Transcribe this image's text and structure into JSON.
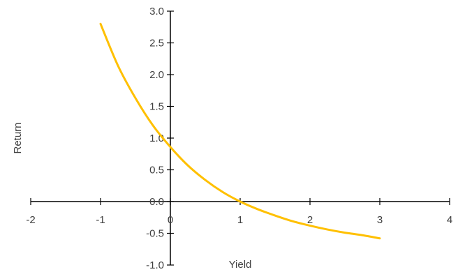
{
  "chart_data": {
    "type": "line",
    "title": "",
    "xlabel": "Yield",
    "ylabel": "Return",
    "xlim": [
      -2,
      4
    ],
    "ylim": [
      -1.0,
      3.0
    ],
    "x_ticks": [
      -2,
      -1,
      0,
      1,
      2,
      3,
      4
    ],
    "y_ticks": [
      3.0,
      2.5,
      2.0,
      1.5,
      1.0,
      0.5,
      0.0,
      -0.5,
      -1.0
    ],
    "x_tick_labels": [
      "-2",
      "-1",
      "0",
      "1",
      "2",
      "3",
      "4"
    ],
    "y_tick_labels": [
      "3.0",
      "2.5",
      "2.0",
      "1.5",
      "1.0",
      "0.5",
      "0.0",
      "-0.5",
      "-1.0"
    ],
    "grid": false,
    "legend": "none",
    "series": [
      {
        "color": "#FFC000",
        "x": [
          -1,
          -0.75,
          -0.5,
          -0.25,
          0,
          0.25,
          0.5,
          0.75,
          1,
          1.25,
          1.5,
          1.75,
          2,
          2.25,
          2.5,
          2.75,
          3
        ],
        "y": [
          2.8,
          2.14,
          1.63,
          1.2,
          0.86,
          0.57,
          0.34,
          0.15,
          0.0,
          -0.12,
          -0.22,
          -0.31,
          -0.38,
          -0.44,
          -0.49,
          -0.53,
          -0.58
        ]
      }
    ]
  }
}
